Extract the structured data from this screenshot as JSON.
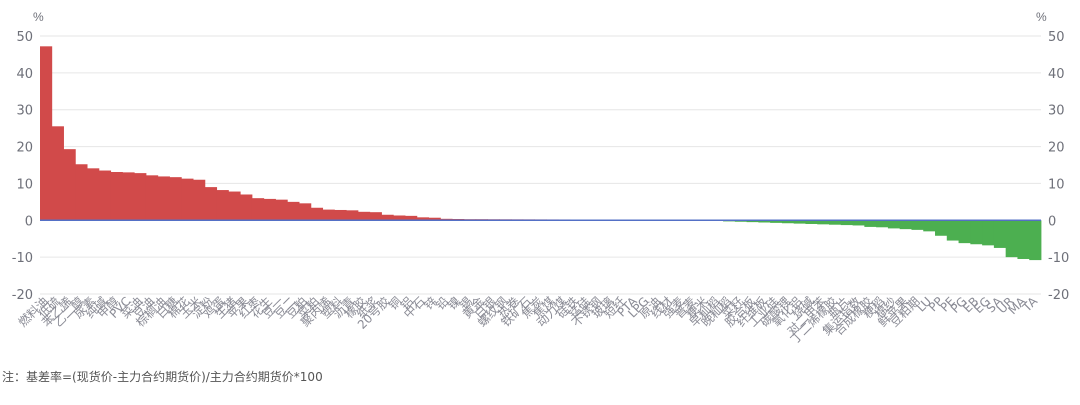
{
  "chart_data": {
    "type": "bar",
    "ylim": [
      -20,
      50
    ],
    "yticks": [
      50,
      40,
      30,
      20,
      10,
      0,
      -10,
      -20
    ],
    "y_unit_left": "%",
    "y_unit_right": "%",
    "grid": true,
    "colors": {
      "positive": "#d14a4a",
      "negative": "#4caf50",
      "baseline": "#5470c6",
      "grid": "#e6e6e6"
    },
    "values": [
      47.2,
      25.5,
      19.3,
      15.2,
      14.1,
      13.5,
      13.1,
      13.0,
      12.8,
      12.2,
      11.9,
      11.7,
      11.3,
      11.0,
      9.0,
      8.2,
      7.8,
      7.0,
      6.0,
      5.8,
      5.6,
      5.0,
      4.6,
      3.4,
      2.9,
      2.8,
      2.7,
      2.3,
      2.2,
      1.5,
      1.3,
      1.2,
      0.8,
      0.7,
      0.4,
      0.35,
      0.3,
      0.3,
      0.28,
      0.27,
      0.26,
      0.25,
      0.24,
      0.23,
      0.22,
      0.21,
      0.2,
      0.19,
      0.18,
      0.17,
      0.16,
      0.15,
      0.14,
      0.13,
      0.12,
      0.1,
      0.08,
      0.06,
      -0.3,
      -0.4,
      -0.5,
      -0.6,
      -0.7,
      -0.8,
      -0.9,
      -1.0,
      -1.1,
      -1.2,
      -1.3,
      -1.4,
      -1.8,
      -1.9,
      -2.2,
      -2.4,
      -2.6,
      -3.0,
      -4.2,
      -5.5,
      -6.2,
      -6.5,
      -6.8,
      -7.5,
      -10.0,
      -10.5,
      -10.8
    ],
    "categories": [
      "燃料油",
      "低硫",
      "苯乙烯",
      "乙二醇",
      "尿素",
      "纯碱",
      "甲醇",
      "PVC",
      "菜油",
      "豆油",
      "棕榈油",
      "白糖",
      "棉花",
      "玉米",
      "淀粉",
      "鸡蛋",
      "生猪",
      "苹果",
      "红枣",
      "花生",
      "豆一",
      "豆二",
      "豆粕",
      "菜粕",
      "聚丙烯",
      "塑料",
      "沥青",
      "橡胶",
      "纸浆",
      "20号胶",
      "铜",
      "铝",
      "中石",
      "锌",
      "铅",
      "镍",
      "锡",
      "黄金",
      "白银",
      "螺纹钢",
      "热卷",
      "铁矿石",
      "焦炭",
      "焦煤",
      "动力煤",
      "硅铁",
      "锰硅",
      "不锈钢",
      "玻璃",
      "短纤",
      "PTA",
      "LPG",
      "原油",
      "线材",
      "强麦",
      "普麦",
      "粳米",
      "早籼稻",
      "晚籼稻",
      "菜籽",
      "胶合板",
      "纤维板",
      "工业硅",
      "碳酸锂",
      "氧化铝",
      "烧碱",
      "对二甲苯",
      "丁二烯橡胶",
      "瓶片",
      "集运指数",
      "合成橡胶",
      "粳稻",
      "棉纱",
      "鲜苹果",
      "豆粕期",
      "LU",
      "PP",
      "PE",
      "PG",
      "EB",
      "EG",
      "SA",
      "UR",
      "MA",
      "TA"
    ],
    "note": "注：基差率=(现货价-主力合约期货价)/主力合约期货价*100"
  }
}
